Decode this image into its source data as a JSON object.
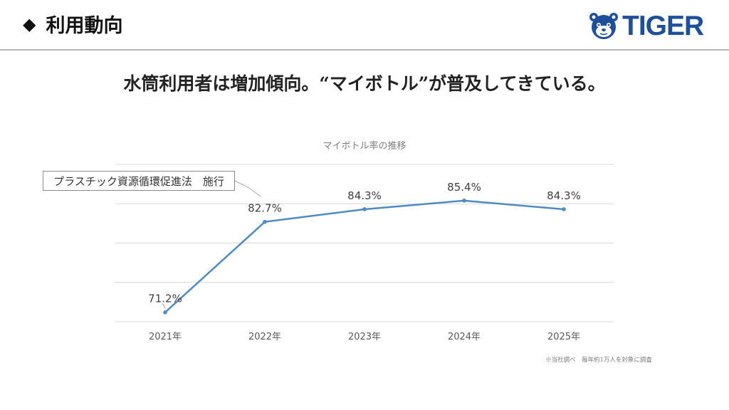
{
  "header": {
    "marker": "◆",
    "title": "利用動向",
    "logo_text": "TIGER"
  },
  "headline": "水筒利用者は増加傾向。“マイボトル”が普及してきている。",
  "annotation": "プラスチック資源循環促進法　施行",
  "footnote": "※当社調べ　毎年約1万人を対象に調査",
  "colors": {
    "line": "#4f8ac5",
    "grid": "#d9d9d9",
    "logo": "#1d4f9a"
  },
  "chart_data": {
    "type": "line",
    "title": "マイボトル率の推移",
    "categories": [
      "2021年",
      "2022年",
      "2023年",
      "2024年",
      "2025年"
    ],
    "series": [
      {
        "values": [
          71.2,
          82.7,
          84.3,
          85.4,
          84.3
        ],
        "labels": [
          "71.2%",
          "82.7%",
          "84.3%",
          "85.4%",
          "84.3%"
        ]
      }
    ],
    "ylim": [
      70,
      90
    ],
    "grid": true,
    "legend": "none"
  }
}
